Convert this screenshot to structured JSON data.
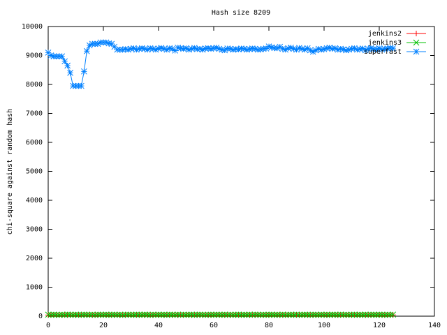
{
  "chart_data": {
    "type": "line",
    "title": "Hash size 8209",
    "y_label": "chi-square against random hash",
    "x": [
      0,
      1,
      2,
      3,
      4,
      5,
      6,
      7,
      8,
      9,
      10,
      11,
      12,
      13,
      14,
      15,
      16,
      17,
      18,
      19,
      20,
      21,
      22,
      23,
      24,
      25,
      26,
      27,
      28,
      29,
      30,
      31,
      32,
      33,
      34,
      35,
      36,
      37,
      38,
      39,
      40,
      41,
      42,
      43,
      44,
      45,
      46,
      47,
      48,
      49,
      50,
      51,
      52,
      53,
      54,
      55,
      56,
      57,
      58,
      59,
      60,
      61,
      62,
      63,
      64,
      65,
      66,
      67,
      68,
      69,
      70,
      71,
      72,
      73,
      74,
      75,
      76,
      77,
      78,
      79,
      80,
      81,
      82,
      83,
      84,
      85,
      86,
      87,
      88,
      89,
      90,
      91,
      92,
      93,
      94,
      95,
      96,
      97,
      98,
      99,
      100,
      101,
      102,
      103,
      104,
      105,
      106,
      107,
      108,
      109,
      110,
      111,
      112,
      113,
      114,
      115,
      116,
      117,
      118,
      119,
      120,
      121,
      122,
      123,
      124,
      125
    ],
    "series": [
      {
        "name": "jenkins2",
        "color": "#ff0000",
        "marker": "plus",
        "values": [
          40,
          38,
          42,
          35,
          44,
          39,
          41,
          37,
          43,
          40,
          36,
          42,
          39,
          41,
          38,
          44,
          40,
          37,
          42,
          39,
          41,
          38,
          43,
          36,
          40,
          42,
          39,
          41,
          37,
          44,
          40,
          38,
          42,
          39,
          41,
          36,
          43,
          40,
          38,
          42,
          39,
          41,
          37,
          44,
          40,
          38,
          42,
          35,
          41,
          39,
          43,
          40,
          37,
          42,
          39,
          41,
          38,
          44,
          40,
          36,
          42,
          39,
          41,
          38,
          43,
          40,
          37,
          42,
          39,
          41,
          38,
          44,
          40,
          36,
          42,
          39,
          41,
          37,
          43,
          40,
          38,
          42,
          39,
          41,
          36,
          44,
          40,
          38,
          42,
          39,
          41,
          37,
          43,
          40,
          38,
          42,
          39,
          41,
          35,
          44,
          40,
          38,
          42,
          39,
          41,
          37,
          43,
          40,
          36,
          42,
          39,
          41,
          38,
          44,
          40,
          37,
          42,
          39,
          41,
          38,
          43,
          40,
          37,
          42,
          39,
          41
        ]
      },
      {
        "name": "jenkins3",
        "color": "#00c000",
        "marker": "cross",
        "values": [
          52,
          48,
          55,
          50,
          46,
          53,
          49,
          57,
          51,
          47,
          54,
          50,
          48,
          56,
          52,
          49,
          53,
          47,
          55,
          51,
          50,
          54,
          48,
          52,
          56,
          49,
          51,
          47,
          53,
          55,
          50,
          48,
          54,
          52,
          49,
          57,
          51,
          46,
          53,
          50,
          55,
          49,
          52,
          48,
          54,
          51,
          47,
          56,
          50,
          53,
          49,
          52,
          55,
          48,
          51,
          54,
          50,
          47,
          53,
          52,
          49,
          56,
          51,
          48,
          54,
          50,
          53,
          47,
          52,
          55,
          49,
          51,
          48,
          54,
          50,
          56,
          52,
          47,
          53,
          49,
          51,
          55,
          48,
          52,
          50,
          54,
          47,
          53,
          51,
          49,
          56,
          50,
          48,
          54,
          52,
          49,
          53,
          51,
          47,
          55,
          50,
          52,
          48,
          54,
          51,
          49,
          56,
          50,
          53,
          47,
          52,
          55,
          49,
          51,
          48,
          54,
          50,
          53,
          52,
          49,
          55,
          51,
          48,
          53,
          50,
          54
        ]
      },
      {
        "name": "superfast",
        "color": "#0080ff",
        "marker": "star",
        "values": [
          9100,
          9000,
          8970,
          8970,
          8970,
          8970,
          8800,
          8650,
          8400,
          7950,
          7950,
          7950,
          7950,
          8450,
          9150,
          9350,
          9400,
          9400,
          9400,
          9450,
          9450,
          9450,
          9420,
          9400,
          9300,
          9200,
          9200,
          9200,
          9220,
          9200,
          9230,
          9250,
          9200,
          9230,
          9250,
          9230,
          9200,
          9250,
          9230,
          9200,
          9240,
          9260,
          9230,
          9200,
          9250,
          9230,
          9170,
          9270,
          9250,
          9230,
          9250,
          9200,
          9230,
          9260,
          9220,
          9230,
          9200,
          9240,
          9250,
          9230,
          9250,
          9270,
          9230,
          9200,
          9180,
          9240,
          9230,
          9200,
          9220,
          9210,
          9240,
          9230,
          9200,
          9220,
          9240,
          9230,
          9200,
          9210,
          9230,
          9240,
          9310,
          9280,
          9260,
          9250,
          9300,
          9230,
          9200,
          9250,
          9270,
          9230,
          9200,
          9260,
          9230,
          9200,
          9250,
          9180,
          9130,
          9180,
          9230,
          9200,
          9220,
          9250,
          9270,
          9230,
          9250,
          9200,
          9230,
          9210,
          9180,
          9200,
          9230,
          9250,
          9200,
          9220,
          9240,
          9180,
          9230,
          9250,
          9220,
          9210,
          9250,
          9200,
          9230,
          9240,
          9260,
          9250
        ]
      }
    ],
    "xlim": [
      0,
      140
    ],
    "xticks": [
      0,
      20,
      40,
      60,
      80,
      100,
      120,
      140
    ],
    "ylim": [
      0,
      10000
    ],
    "yticks": [
      0,
      1000,
      2000,
      3000,
      4000,
      5000,
      6000,
      7000,
      8000,
      9000,
      10000
    ],
    "legend": "top-right"
  }
}
